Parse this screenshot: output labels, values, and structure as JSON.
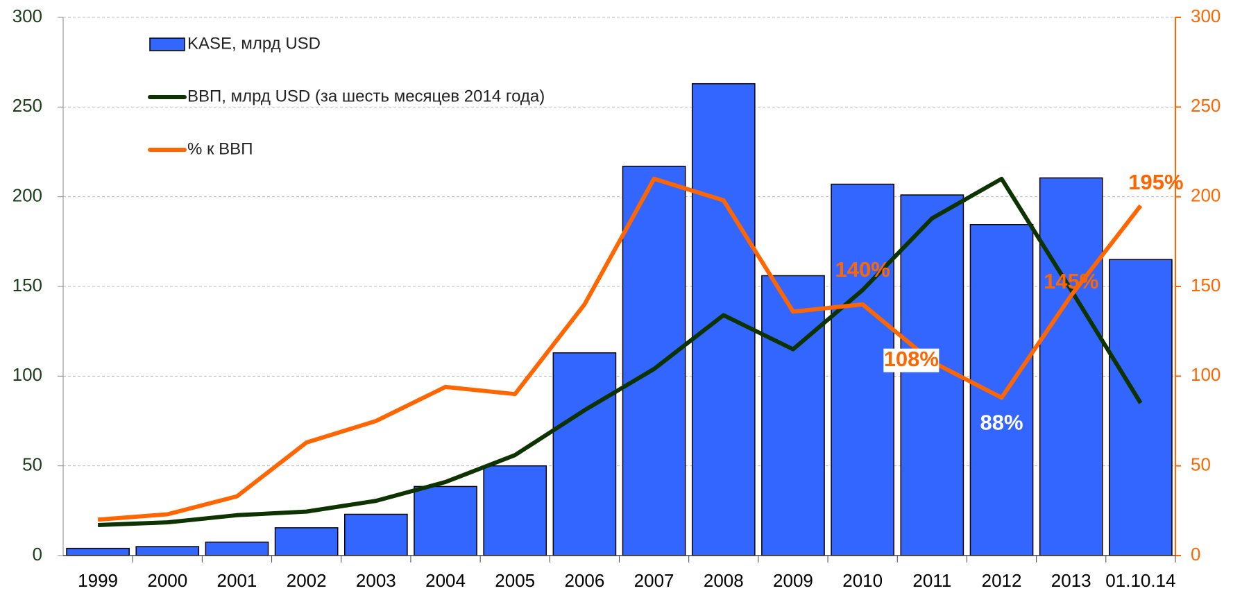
{
  "chart_data": {
    "type": "bar_line",
    "categories": [
      "1999",
      "2000",
      "2001",
      "2002",
      "2003",
      "2004",
      "2005",
      "2006",
      "2007",
      "2008",
      "2009",
      "2010",
      "2011",
      "2012",
      "2013",
      "01.10.14"
    ],
    "series": [
      {
        "name": "KASE, млрд USD",
        "type": "bar",
        "color": "#3366ff",
        "values": [
          4,
          5,
          7.5,
          15.5,
          23,
          38.5,
          50,
          113,
          217,
          263,
          156,
          207,
          201,
          184.5,
          210.5,
          165
        ]
      },
      {
        "name": "ВВП, млрд USD (за шесть месяцев 2014 года)",
        "type": "line",
        "color": "#0d3300",
        "values": [
          17,
          18.5,
          22.5,
          24.5,
          30.5,
          41,
          56,
          81,
          104,
          134,
          115,
          148,
          188,
          210,
          148,
          85
        ]
      },
      {
        "name": "% к ВВП",
        "type": "line",
        "axis": "y2",
        "color": "#ff6600",
        "values": [
          20,
          23,
          33,
          63,
          75,
          94,
          90,
          140,
          210,
          198,
          136,
          140,
          108,
          88,
          145,
          195
        ],
        "value_labels": [
          null,
          null,
          null,
          null,
          null,
          null,
          null,
          null,
          null,
          null,
          null,
          "140%",
          "108%",
          "88%",
          "145%",
          "195%"
        ]
      }
    ],
    "ylim": [
      0,
      300
    ],
    "yticks": [
      0,
      50,
      100,
      150,
      200,
      250,
      300
    ],
    "y2lim": [
      0,
      300
    ],
    "y2ticks": [
      0,
      50,
      100,
      150,
      200,
      250,
      300
    ],
    "grid": true,
    "legend": "upper left"
  }
}
